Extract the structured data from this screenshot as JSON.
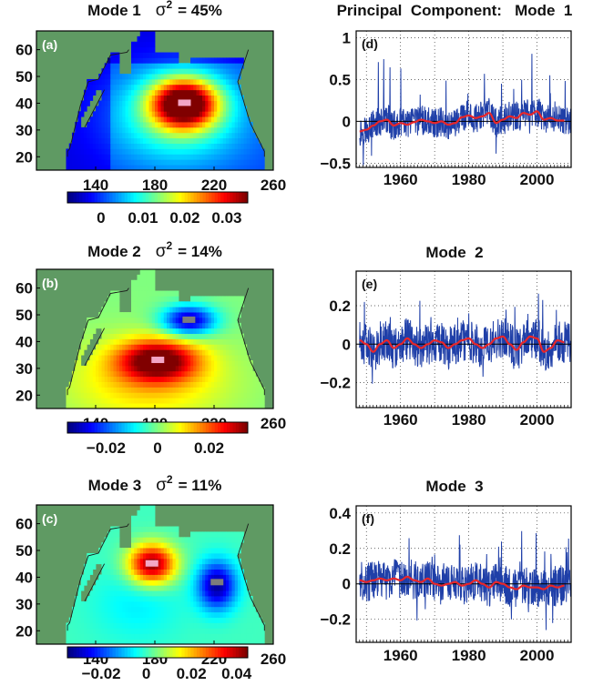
{
  "chart_data": [
    {
      "type": "heatmap",
      "panel_label": "(a)",
      "title": "Mode  1   σ² = 45%",
      "title_mode": "Mode  1",
      "title_sigma": "σ",
      "title_exp": "2",
      "title_pct": "= 45%",
      "xticks": [
        140,
        180,
        220,
        260
      ],
      "yticks": [
        20,
        30,
        40,
        50,
        60
      ],
      "xlim": [
        100,
        260
      ],
      "ylim": [
        15,
        67
      ],
      "colorbar_ticks": [
        "0",
        "0.01",
        "0.02",
        "0.03"
      ],
      "colorbar_range": [
        -0.008,
        0.035
      ],
      "colormap": "jet",
      "anomaly_centers": [
        {
          "lon": 200,
          "lat": 40,
          "value": 0.035
        }
      ]
    },
    {
      "type": "line",
      "panel_label": "(d)",
      "title": "Principal  Component:   Mode  1",
      "xticks": [
        1960,
        1980,
        2000
      ],
      "xlim": [
        1947,
        2010
      ],
      "yticks": [
        "−0.5",
        "0",
        "0.5",
        "1"
      ],
      "ylim": [
        -0.55,
        1.08
      ],
      "series": [
        {
          "style": "monthly",
          "color": "#1f3fa8"
        },
        {
          "style": "smoothed",
          "color": "#e8262a"
        }
      ],
      "smooth_x": [
        1948,
        1950,
        1952,
        1954,
        1956,
        1958,
        1960,
        1962,
        1964,
        1966,
        1968,
        1970,
        1972,
        1974,
        1976,
        1978,
        1980,
        1982,
        1984,
        1986,
        1988,
        1990,
        1992,
        1994,
        1996,
        1998,
        2000,
        2002,
        2004,
        2006,
        2008
      ],
      "smooth_y": [
        -0.12,
        -0.1,
        -0.05,
        0,
        0.02,
        -0.05,
        -0.02,
        -0.04,
        -0.01,
        0.02,
        0,
        -0.02,
        0,
        -0.04,
        -0.02,
        0.05,
        0.07,
        0.04,
        0.06,
        0.1,
        -0.02,
        0.02,
        0.06,
        0.04,
        0.1,
        0.08,
        0.12,
        0.02,
        0.04,
        0.01,
        0.01
      ]
    },
    {
      "type": "heatmap",
      "panel_label": "(b)",
      "title": "Mode  2   σ² = 14%",
      "title_mode": "Mode  2",
      "title_sigma": "σ",
      "title_exp": "2",
      "title_pct": "= 14%",
      "xticks": [
        140,
        180,
        220,
        260
      ],
      "yticks": [
        20,
        30,
        40,
        50,
        60
      ],
      "xlim": [
        100,
        260
      ],
      "ylim": [
        15,
        67
      ],
      "colorbar_ticks": [
        "−0.02",
        "0",
        "0.02"
      ],
      "colorbar_range": [
        -0.035,
        0.035
      ],
      "colormap": "jet",
      "anomaly_centers": [
        {
          "lon": 182,
          "lat": 33,
          "value": 0.035
        },
        {
          "lon": 203,
          "lat": 48,
          "value": -0.03
        }
      ]
    },
    {
      "type": "line",
      "panel_label": "(e)",
      "title": "Mode  2",
      "xticks": [
        1960,
        1980,
        2000
      ],
      "xlim": [
        1947,
        2010
      ],
      "yticks": [
        "−0.2",
        "0",
        "0.2"
      ],
      "ylim": [
        -0.33,
        0.38
      ],
      "series": [
        {
          "style": "monthly",
          "color": "#1f3fa8"
        },
        {
          "style": "smoothed",
          "color": "#e8262a"
        }
      ],
      "smooth_x": [
        1948,
        1950,
        1952,
        1954,
        1956,
        1958,
        1960,
        1962,
        1964,
        1966,
        1968,
        1970,
        1972,
        1974,
        1976,
        1978,
        1980,
        1982,
        1984,
        1986,
        1988,
        1990,
        1992,
        1994,
        1996,
        1998,
        2000,
        2002,
        2004,
        2006,
        2008
      ],
      "smooth_y": [
        0.02,
        0,
        -0.04,
        0,
        0.02,
        -0.02,
        0,
        0.03,
        0,
        -0.02,
        0,
        0.02,
        0.01,
        -0.02,
        0,
        0.02,
        0.03,
        0,
        -0.02,
        0,
        0.03,
        0.04,
        0,
        -0.03,
        0.01,
        0.04,
        0.03,
        -0.04,
        -0.02,
        0.02,
        0.01
      ]
    },
    {
      "type": "heatmap",
      "panel_label": "(c)",
      "title": "Mode  3   σ² = 11%",
      "title_mode": "Mode  3",
      "title_sigma": "σ",
      "title_exp": "2",
      "title_pct": "= 11%",
      "xticks": [
        140,
        180,
        220,
        260
      ],
      "yticks": [
        20,
        30,
        40,
        50,
        60
      ],
      "xlim": [
        100,
        260
      ],
      "ylim": [
        15,
        67
      ],
      "colorbar_ticks": [
        "−0.02",
        "0",
        "0.02",
        "0.04"
      ],
      "colorbar_range": [
        -0.035,
        0.045
      ],
      "colormap": "jet",
      "anomaly_centers": [
        {
          "lon": 178,
          "lat": 45,
          "value": 0.045
        },
        {
          "lon": 222,
          "lat": 38,
          "value": -0.03
        }
      ]
    },
    {
      "type": "line",
      "panel_label": "(f)",
      "title": "Mode  3",
      "xticks": [
        1960,
        1980,
        2000
      ],
      "xlim": [
        1947,
        2010
      ],
      "yticks": [
        "−0.2",
        "0",
        "0.2",
        "0.4"
      ],
      "ylim": [
        -0.33,
        0.44
      ],
      "series": [
        {
          "style": "monthly",
          "color": "#1f3fa8"
        },
        {
          "style": "smoothed",
          "color": "#e8262a"
        }
      ],
      "smooth_x": [
        1948,
        1950,
        1952,
        1954,
        1956,
        1958,
        1960,
        1962,
        1964,
        1966,
        1968,
        1970,
        1972,
        1974,
        1976,
        1978,
        1980,
        1982,
        1984,
        1986,
        1988,
        1990,
        1992,
        1994,
        1996,
        1998,
        2000,
        2002,
        2004,
        2006,
        2008
      ],
      "smooth_y": [
        0.02,
        0.01,
        0.02,
        0.03,
        0.02,
        0.03,
        0.02,
        0.04,
        0.02,
        0.01,
        0.03,
        0,
        -0.01,
        0,
        0.01,
        -0.01,
        0,
        0.02,
        0,
        -0.02,
        0.01,
        0,
        -0.02,
        -0.03,
        -0.01,
        -0.02,
        -0.02,
        -0.03,
        -0.01,
        -0.02,
        -0.01
      ]
    }
  ]
}
